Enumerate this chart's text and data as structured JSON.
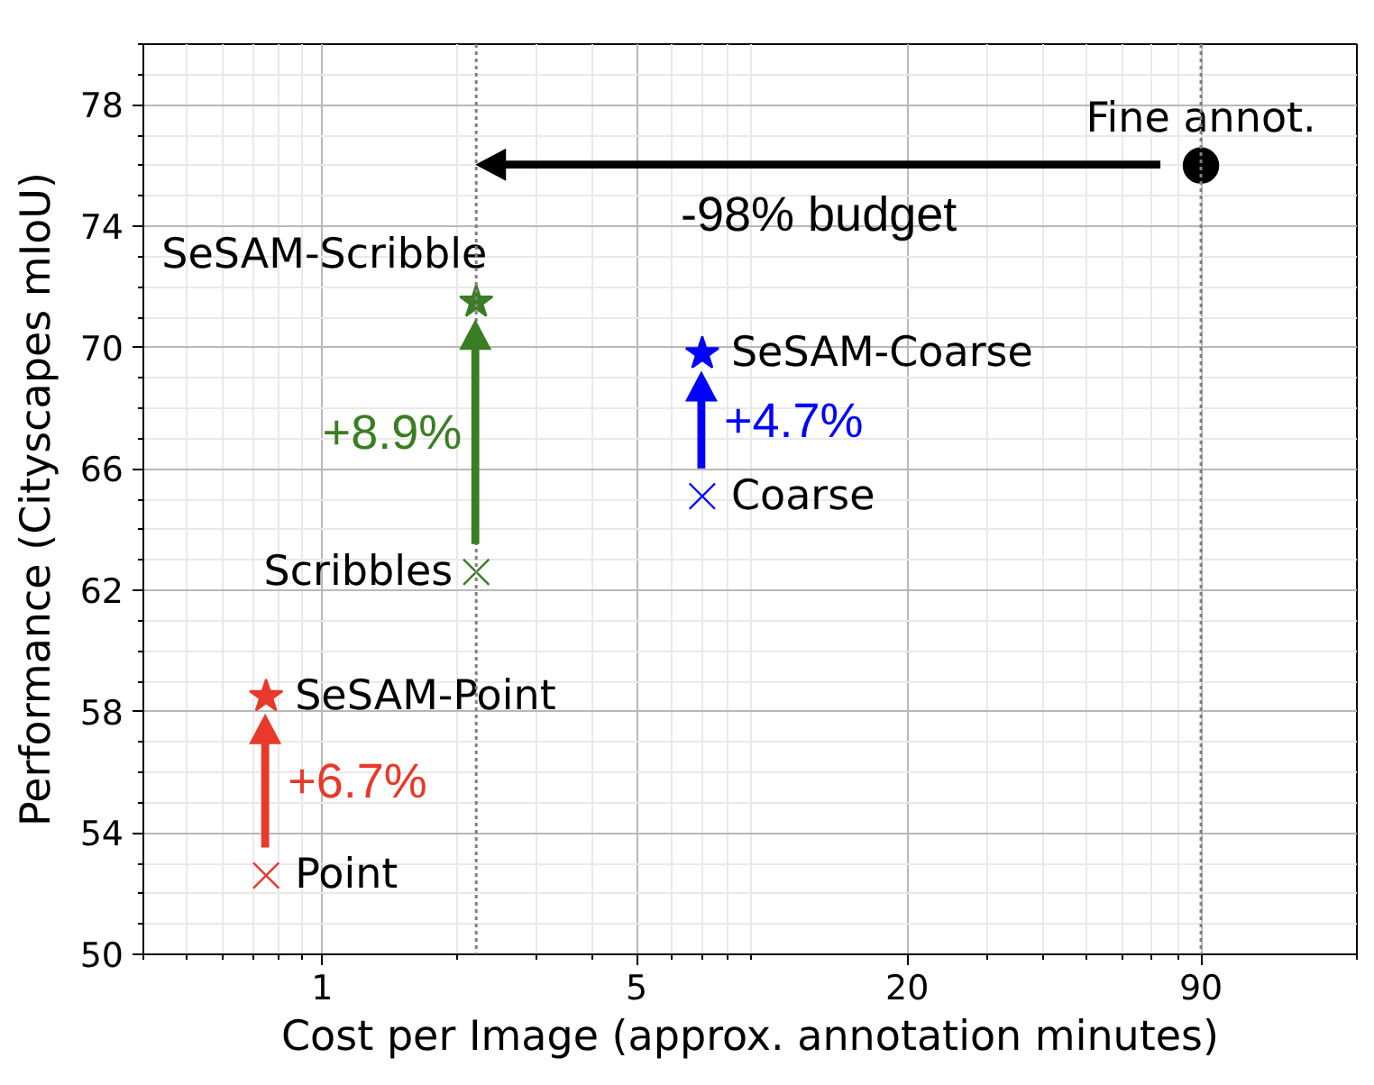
{
  "chart_data": {
    "type": "scatter",
    "xlabel": "Cost per Image (approx. annotation minutes)",
    "ylabel": "Performance (Cityscapes mIoU)",
    "log": "x",
    "xlim": [
      0.4,
      200
    ],
    "ylim": [
      50,
      80
    ],
    "xticks": [
      1,
      5,
      20,
      90
    ],
    "yticks": [
      50,
      54,
      58,
      62,
      66,
      70,
      74,
      78
    ],
    "grid": true,
    "series": [
      {
        "name": "Point",
        "color": "#e8392a",
        "marker": "cross",
        "x": [
          0.75
        ],
        "values": [
          52.6
        ]
      },
      {
        "name": "SeSAM-Point",
        "color": "#e8392a",
        "marker": "star",
        "x": [
          0.75
        ],
        "values": [
          58.5
        ]
      },
      {
        "name": "Scribbles",
        "color": "#3a7d23",
        "marker": "cross",
        "x": [
          2.2
        ],
        "values": [
          62.6
        ]
      },
      {
        "name": "SeSAM-Scribble",
        "color": "#3a7d23",
        "marker": "star",
        "x": [
          2.2
        ],
        "values": [
          71.5
        ]
      },
      {
        "name": "Coarse",
        "color": "#0000ff",
        "marker": "cross",
        "x": [
          7
        ],
        "values": [
          65.1
        ]
      },
      {
        "name": "SeSAM-Coarse",
        "color": "#0000ff",
        "marker": "star",
        "x": [
          7
        ],
        "values": [
          69.8
        ]
      },
      {
        "name": "Fine annot.",
        "color": "#000000",
        "marker": "circle",
        "x": [
          90
        ],
        "values": [
          76
        ]
      }
    ],
    "ref_lines": [
      {
        "axis": "x",
        "value": 2.2,
        "color": "#808080",
        "line_style": "dotted"
      },
      {
        "axis": "x",
        "value": 90,
        "color": "#808080",
        "line_style": "dotted"
      }
    ],
    "annotations": [
      "-98% budget",
      "+8.9%",
      "+4.7%",
      "+6.7%"
    ]
  }
}
